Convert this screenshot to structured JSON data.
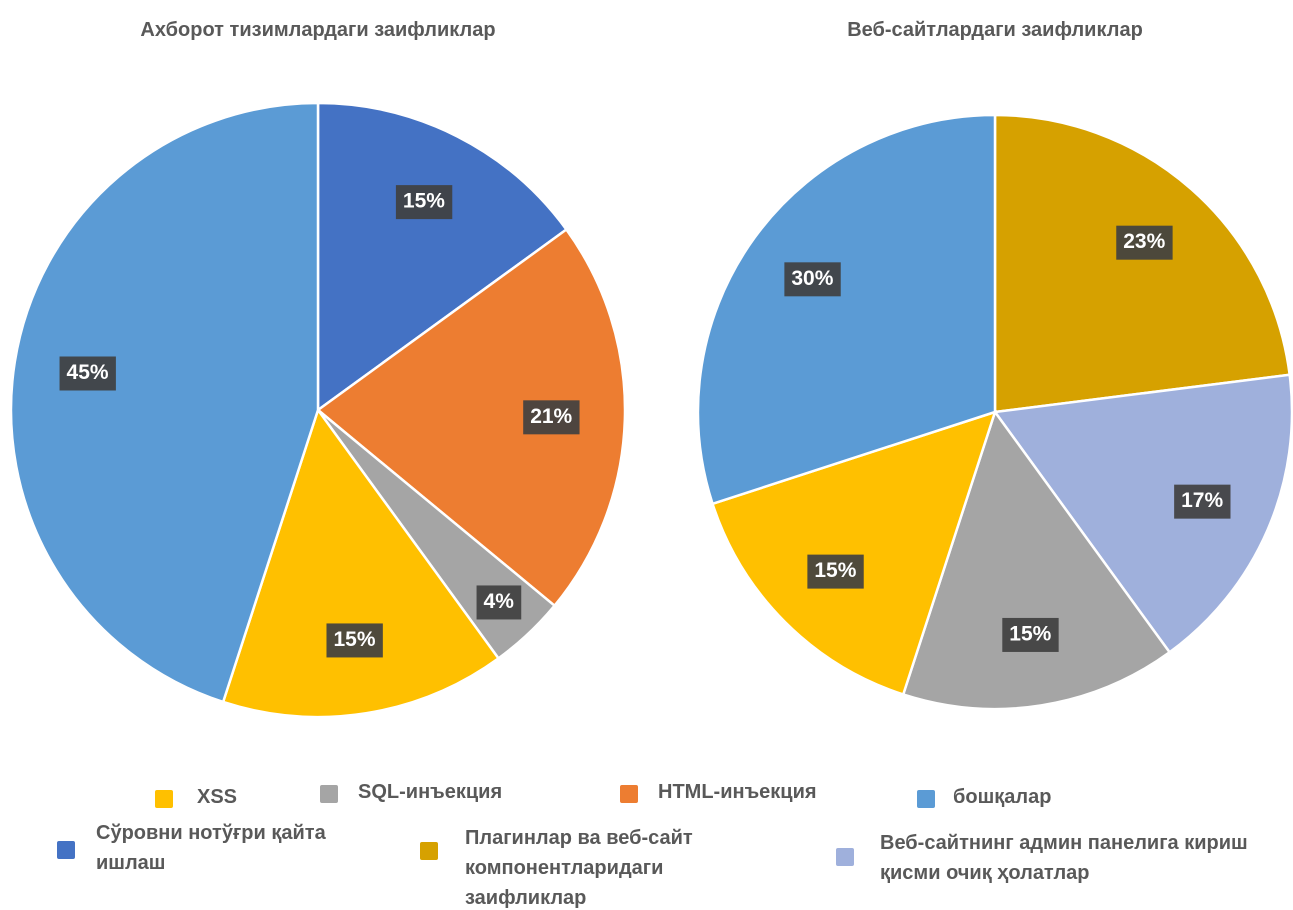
{
  "chart_data": [
    {
      "type": "pie",
      "title": "Ахборот тизимлардаги заифликлар",
      "categories": [
        "Сўровни нотўғри қайта ишлаш",
        "HTML-инъекция",
        "SQL-инъекция",
        "XSS",
        "бошқалар"
      ],
      "values": [
        15,
        21,
        4,
        15,
        45
      ],
      "value_labels": [
        "15%",
        "21%",
        "4%",
        "15%",
        "45%"
      ],
      "colors": [
        "#4472c4",
        "#ed7d31",
        "#a5a5a5",
        "#ffc000",
        "#5b9bd5"
      ]
    },
    {
      "type": "pie",
      "title": "Веб-сайтлардаги заифликлар",
      "categories": [
        "Плагинлар ва веб-сайт компонентларидаги заифликлар",
        "Веб-сайтнинг админ панелига кириш қисми очиқ ҳолатлар",
        "SQL-инъекция",
        "XSS",
        "бошқалар"
      ],
      "values": [
        23,
        17,
        15,
        15,
        30
      ],
      "value_labels": [
        "23%",
        "17%",
        "15%",
        "15%",
        "30%"
      ],
      "colors": [
        "#d6a100",
        "#9fb0dc",
        "#a5a5a5",
        "#ffc000",
        "#5b9bd5"
      ]
    }
  ],
  "legend": [
    {
      "name": "XSS",
      "color": "#ffc000"
    },
    {
      "name": "SQL-инъекция",
      "color": "#a5a5a5"
    },
    {
      "name": "HTML-инъекция",
      "color": "#ed7d31"
    },
    {
      "name": "бошқалар",
      "color": "#5b9bd5"
    },
    {
      "name": "Сўровни нотўғри қайта ишлаш",
      "color": "#4472c4"
    },
    {
      "name": "Плагинлар ва веб-сайт компонентларидаги заифликлар",
      "color": "#d6a100"
    },
    {
      "name": "Веб-сайтнинг админ панелига кириш қисми очиқ ҳолатлар",
      "color": "#9fb0dc"
    }
  ]
}
